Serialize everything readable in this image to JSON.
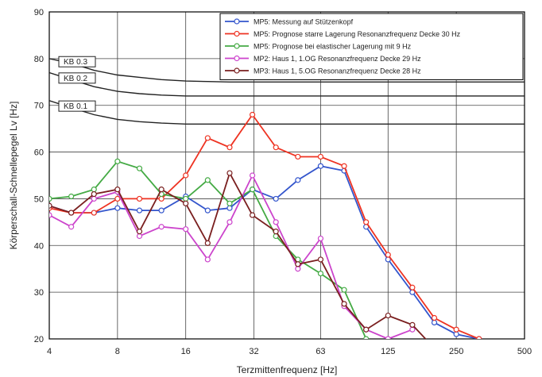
{
  "chart_data": {
    "type": "line",
    "xlabel": "Terzmittenfrequenz [Hz]",
    "ylabel": "Körperschall-Schnellepegel Lv [Hz]",
    "x_scale": "log2",
    "xlim": [
      4,
      500
    ],
    "ylim": [
      20,
      90
    ],
    "x_tick_labels": [
      "4",
      "8",
      "16",
      "32",
      "63",
      "125",
      "250",
      "500"
    ],
    "x_tick_values": [
      4,
      8,
      16,
      32,
      63,
      125,
      250,
      500
    ],
    "y_ticks": [
      20,
      30,
      40,
      50,
      60,
      70,
      80,
      90
    ],
    "grid": true,
    "legend_position": "top-right",
    "x": [
      4,
      5,
      6.3,
      8,
      10,
      12.5,
      16,
      20,
      25,
      31.5,
      40,
      50,
      63,
      80,
      100,
      125,
      160,
      200,
      250,
      315
    ],
    "series": [
      {
        "name": "MP5: Messung auf Stützenkopf",
        "color": "#3355cc",
        "values": [
          48.5,
          47,
          47,
          48,
          47.5,
          47.5,
          50.5,
          47.5,
          48,
          52,
          50,
          54,
          57,
          56,
          44,
          37,
          30,
          23.5,
          21,
          20
        ]
      },
      {
        "name": "MP5: Prognose starre Lagerung Resonanzfrequenz Decke 30 Hz",
        "color": "#ee3322",
        "values": [
          48,
          47,
          47,
          50,
          50,
          50,
          55,
          63,
          61,
          68,
          61,
          59,
          59,
          57,
          45,
          38,
          31,
          24.5,
          22,
          20
        ]
      },
      {
        "name": "MP5: Prognose bei elastischer Lagerung mit 9 Hz",
        "color": "#44aa44",
        "values": [
          50,
          50.5,
          52,
          58,
          56.5,
          51,
          50,
          54,
          49,
          52,
          42,
          37,
          34,
          30.5,
          20,
          null,
          null,
          null,
          null,
          null
        ]
      },
      {
        "name": "MP2: Haus 1, 1.OG Resonanzfrequenz Decke 29 Hz",
        "color": "#cc44cc",
        "values": [
          46.5,
          44,
          50,
          51.5,
          42,
          44,
          43.5,
          37,
          45,
          55,
          45,
          35,
          41.5,
          27,
          22,
          20,
          22,
          null,
          null,
          null
        ]
      },
      {
        "name": "MP3: Haus 1, 5.OG Resonanzfrequenz Decke 28 Hz",
        "color": "#7a1f1f",
        "values": [
          48.5,
          47,
          51,
          52,
          43,
          52,
          49,
          40.5,
          55.5,
          46.5,
          43,
          36,
          37,
          27.5,
          22,
          25,
          23,
          18,
          null,
          null
        ]
      }
    ],
    "reference_curves": [
      {
        "label": "KB 0.3",
        "values": [
          80,
          79,
          77.5,
          76.5,
          76,
          75.5,
          75.2,
          75.1,
          75,
          75,
          75,
          75,
          75,
          75,
          75,
          75,
          75,
          75,
          75,
          75,
          75
        ]
      },
      {
        "label": "KB 0.2",
        "values": [
          77,
          75.5,
          74,
          73,
          72.5,
          72.2,
          72,
          72,
          72,
          72,
          72,
          72,
          72,
          72,
          72,
          72,
          72,
          72,
          72,
          72,
          72
        ]
      },
      {
        "label": "KB 0.1",
        "values": [
          71,
          69.5,
          68,
          67,
          66.5,
          66.2,
          66,
          66,
          66,
          66,
          66,
          66,
          66,
          66,
          66,
          66,
          66,
          66,
          66,
          66,
          66
        ]
      }
    ],
    "reference_x": [
      4,
      5,
      6.3,
      8,
      10,
      12.5,
      16,
      20,
      25,
      31.5,
      40,
      50,
      63,
      80,
      100,
      125,
      160,
      200,
      250,
      315,
      500
    ]
  },
  "colors": {
    "grid": "#444444",
    "reference": "#222222",
    "frame": "#000000"
  }
}
